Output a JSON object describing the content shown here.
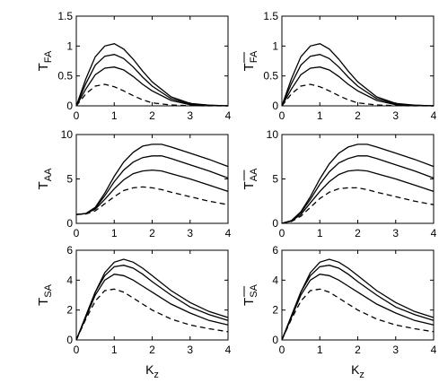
{
  "chart_data": [
    {
      "type": "line",
      "panel": "T_FA",
      "ylabel": "T",
      "ylabel_sub": "FA",
      "ylabel_overbar": false,
      "xlabel": "",
      "xlim": [
        0,
        4
      ],
      "ylim": [
        0,
        1.5
      ],
      "xticks": [
        "0",
        "1",
        "2",
        "3",
        "4"
      ],
      "yticks": [
        "0",
        "0.5",
        "1",
        "1.5"
      ],
      "x": [
        0,
        0.25,
        0.5,
        0.75,
        1,
        1.25,
        1.5,
        1.75,
        2,
        2.5,
        3,
        3.5,
        4
      ],
      "series": [
        {
          "style": "solid",
          "values": [
            0,
            0.45,
            0.82,
            1.0,
            1.04,
            0.95,
            0.78,
            0.58,
            0.4,
            0.15,
            0.04,
            0.01,
            0
          ]
        },
        {
          "style": "solid",
          "values": [
            0,
            0.37,
            0.68,
            0.83,
            0.86,
            0.79,
            0.65,
            0.48,
            0.33,
            0.12,
            0.03,
            0.01,
            0
          ]
        },
        {
          "style": "solid",
          "values": [
            0,
            0.28,
            0.52,
            0.63,
            0.65,
            0.6,
            0.49,
            0.36,
            0.25,
            0.09,
            0.02,
            0.005,
            0
          ]
        },
        {
          "style": "dashed",
          "values": [
            0,
            0.2,
            0.33,
            0.36,
            0.32,
            0.25,
            0.17,
            0.1,
            0.05,
            0.015,
            0.003,
            0,
            0
          ]
        }
      ]
    },
    {
      "type": "line",
      "panel": "overbar T_FA",
      "ylabel": "T",
      "ylabel_sub": "FA",
      "ylabel_overbar": true,
      "xlabel": "",
      "xlim": [
        0,
        4
      ],
      "ylim": [
        0,
        1.5
      ],
      "xticks": [
        "0",
        "1",
        "2",
        "3",
        "4"
      ],
      "yticks": [
        "0",
        "0.5",
        "1",
        "1.5"
      ],
      "x": [
        0,
        0.25,
        0.5,
        0.75,
        1,
        1.25,
        1.5,
        1.75,
        2,
        2.5,
        3,
        3.5,
        4
      ],
      "series": [
        {
          "style": "solid",
          "values": [
            0,
            0.45,
            0.82,
            1.0,
            1.04,
            0.95,
            0.78,
            0.58,
            0.4,
            0.15,
            0.04,
            0.01,
            0
          ]
        },
        {
          "style": "solid",
          "values": [
            0,
            0.37,
            0.68,
            0.83,
            0.86,
            0.79,
            0.65,
            0.48,
            0.33,
            0.12,
            0.03,
            0.01,
            0
          ]
        },
        {
          "style": "solid",
          "values": [
            0,
            0.28,
            0.52,
            0.63,
            0.65,
            0.6,
            0.49,
            0.36,
            0.25,
            0.09,
            0.02,
            0.005,
            0
          ]
        },
        {
          "style": "dashed",
          "values": [
            0,
            0.2,
            0.33,
            0.36,
            0.32,
            0.25,
            0.17,
            0.1,
            0.05,
            0.015,
            0.003,
            0,
            0
          ]
        }
      ]
    },
    {
      "type": "line",
      "panel": "T_AA",
      "ylabel": "T",
      "ylabel_sub": "AA",
      "ylabel_overbar": false,
      "xlabel": "",
      "xlim": [
        0,
        4
      ],
      "ylim": [
        0,
        10
      ],
      "xticks": [
        "0",
        "1",
        "2",
        "3",
        "4"
      ],
      "yticks": [
        "0",
        "5",
        "10"
      ],
      "x": [
        0,
        0.25,
        0.5,
        0.75,
        1,
        1.25,
        1.5,
        1.75,
        2,
        2.25,
        2.5,
        3,
        3.5,
        4
      ],
      "series": [
        {
          "style": "solid",
          "values": [
            1,
            1.1,
            1.8,
            3.4,
            5.3,
            6.9,
            8.0,
            8.7,
            8.9,
            8.9,
            8.6,
            7.9,
            7.2,
            6.4
          ]
        },
        {
          "style": "solid",
          "values": [
            1,
            1.1,
            1.7,
            3.1,
            4.7,
            6.0,
            6.9,
            7.4,
            7.6,
            7.6,
            7.3,
            6.6,
            5.9,
            5.1
          ]
        },
        {
          "style": "solid",
          "values": [
            1,
            1.1,
            1.6,
            2.7,
            3.9,
            4.9,
            5.6,
            5.9,
            6.0,
            5.9,
            5.6,
            5.0,
            4.3,
            3.6
          ]
        },
        {
          "style": "dashed",
          "values": [
            1,
            1.05,
            1.4,
            2.2,
            3.0,
            3.7,
            4.0,
            4.1,
            4.0,
            3.8,
            3.5,
            3.0,
            2.5,
            2.1
          ]
        }
      ]
    },
    {
      "type": "line",
      "panel": "overbar T_AA",
      "ylabel": "T",
      "ylabel_sub": "AA",
      "ylabel_overbar": true,
      "xlabel": "",
      "xlim": [
        0,
        4
      ],
      "ylim": [
        0,
        10
      ],
      "xticks": [
        "0",
        "1",
        "2",
        "3",
        "4"
      ],
      "yticks": [
        "0",
        "5",
        "10"
      ],
      "x": [
        0,
        0.25,
        0.5,
        0.75,
        1,
        1.25,
        1.5,
        1.75,
        2,
        2.25,
        2.5,
        3,
        3.5,
        4
      ],
      "series": [
        {
          "style": "solid",
          "values": [
            0,
            0.3,
            1.3,
            3.0,
            5.0,
            6.7,
            7.9,
            8.6,
            8.9,
            8.9,
            8.6,
            7.9,
            7.2,
            6.4
          ]
        },
        {
          "style": "solid",
          "values": [
            0,
            0.3,
            1.2,
            2.7,
            4.4,
            5.8,
            6.8,
            7.3,
            7.6,
            7.6,
            7.3,
            6.6,
            5.9,
            5.1
          ]
        },
        {
          "style": "solid",
          "values": [
            0,
            0.25,
            1.0,
            2.3,
            3.6,
            4.7,
            5.5,
            5.9,
            6.0,
            5.9,
            5.6,
            5.0,
            4.3,
            3.6
          ]
        },
        {
          "style": "dashed",
          "values": [
            0,
            0.2,
            0.8,
            1.8,
            2.8,
            3.5,
            3.9,
            4.0,
            4.0,
            3.8,
            3.5,
            3.0,
            2.5,
            2.1
          ]
        }
      ]
    },
    {
      "type": "line",
      "panel": "T_SA",
      "ylabel": "T",
      "ylabel_sub": "SA",
      "ylabel_overbar": false,
      "xlabel": "K",
      "xlabel_sub": "z",
      "xlim": [
        0,
        4
      ],
      "ylim": [
        0,
        6
      ],
      "xticks": [
        "0",
        "1",
        "2",
        "3",
        "4"
      ],
      "yticks": [
        "0",
        "2",
        "4",
        "6"
      ],
      "x": [
        0,
        0.25,
        0.5,
        0.75,
        1,
        1.25,
        1.5,
        1.75,
        2,
        2.5,
        3,
        3.5,
        4
      ],
      "series": [
        {
          "style": "solid",
          "values": [
            0,
            1.6,
            3.2,
            4.5,
            5.2,
            5.4,
            5.2,
            4.8,
            4.3,
            3.3,
            2.5,
            1.9,
            1.5
          ]
        },
        {
          "style": "solid",
          "values": [
            0,
            1.6,
            3.2,
            4.3,
            4.9,
            5.0,
            4.8,
            4.4,
            3.9,
            3.0,
            2.2,
            1.7,
            1.3
          ]
        },
        {
          "style": "solid",
          "values": [
            0,
            1.5,
            3.0,
            4.0,
            4.4,
            4.3,
            4.0,
            3.6,
            3.2,
            2.4,
            1.8,
            1.3,
            1.0
          ]
        },
        {
          "style": "dashed",
          "values": [
            0,
            1.4,
            2.6,
            3.3,
            3.4,
            3.2,
            2.8,
            2.4,
            2.0,
            1.4,
            1.0,
            0.75,
            0.55
          ]
        }
      ]
    },
    {
      "type": "line",
      "panel": "overbar T_SA",
      "ylabel": "T",
      "ylabel_sub": "SA",
      "ylabel_overbar": true,
      "xlabel": "K",
      "xlabel_sub": "z",
      "xlim": [
        0,
        4
      ],
      "ylim": [
        0,
        6
      ],
      "xticks": [
        "0",
        "1",
        "2",
        "3",
        "4"
      ],
      "yticks": [
        "0",
        "2",
        "4",
        "6"
      ],
      "x": [
        0,
        0.25,
        0.5,
        0.75,
        1,
        1.25,
        1.5,
        1.75,
        2,
        2.5,
        3,
        3.5,
        4
      ],
      "series": [
        {
          "style": "solid",
          "values": [
            0,
            1.6,
            3.2,
            4.5,
            5.2,
            5.4,
            5.2,
            4.8,
            4.3,
            3.3,
            2.5,
            1.9,
            1.5
          ]
        },
        {
          "style": "solid",
          "values": [
            0,
            1.6,
            3.2,
            4.3,
            4.9,
            5.0,
            4.8,
            4.4,
            3.9,
            3.0,
            2.2,
            1.7,
            1.3
          ]
        },
        {
          "style": "solid",
          "values": [
            0,
            1.5,
            3.0,
            4.0,
            4.4,
            4.3,
            4.0,
            3.6,
            3.2,
            2.4,
            1.8,
            1.3,
            1.0
          ]
        },
        {
          "style": "dashed",
          "values": [
            0,
            1.4,
            2.6,
            3.3,
            3.4,
            3.2,
            2.8,
            2.4,
            2.0,
            1.4,
            1.0,
            0.75,
            0.55
          ]
        }
      ]
    }
  ]
}
